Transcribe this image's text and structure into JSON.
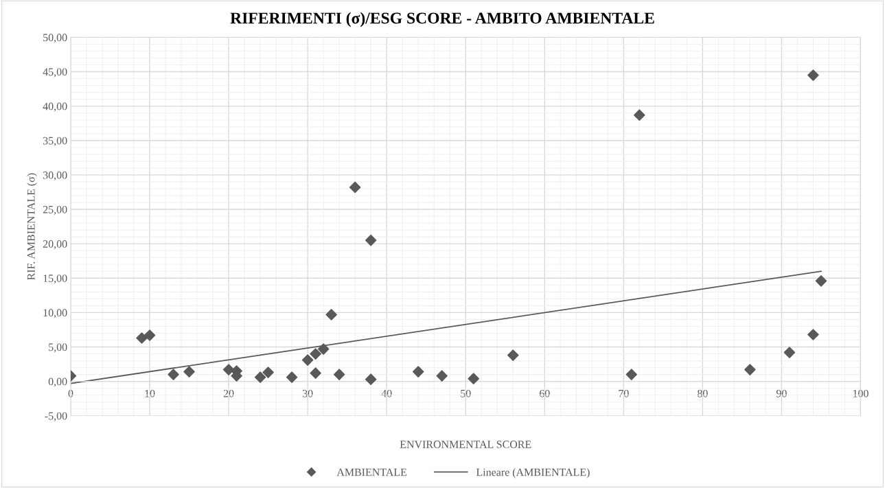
{
  "chart_data": {
    "type": "scatter",
    "title": "RIFERIMENTI (σ)/ESG SCORE - AMBITO AMBIENTALE",
    "xlabel": "ENVIRONMENTAL SCORE",
    "ylabel": "RIF. AMBIENTALE (σ)",
    "series": [
      {
        "name": "AMBIENTALE",
        "color": "#595959",
        "marker": "diamond",
        "x": [
          0,
          9,
          10,
          13,
          15,
          20,
          21,
          21,
          24,
          25,
          28,
          30,
          31,
          31,
          32,
          33,
          34,
          36,
          38,
          38,
          44,
          47,
          51,
          56,
          71,
          72,
          86,
          91,
          94,
          94,
          95
        ],
        "values": [
          0.8,
          6.3,
          6.7,
          1.0,
          1.4,
          1.7,
          1.5,
          0.8,
          0.6,
          1.3,
          0.6,
          3.1,
          4.0,
          1.2,
          4.7,
          9.7,
          1.0,
          28.2,
          20.5,
          0.3,
          1.4,
          0.8,
          0.4,
          3.8,
          1.0,
          38.7,
          1.7,
          4.2,
          44.5,
          6.8,
          14.6
        ]
      },
      {
        "name": "Lineare (AMBIENTALE)",
        "type": "line",
        "color": "#595959",
        "marker": "none",
        "line_style": "solid",
        "x": [
          0,
          95
        ],
        "values": [
          -0.3,
          16.0
        ]
      }
    ],
    "xlim": [
      0,
      100
    ],
    "xticks": [
      0,
      10,
      20,
      30,
      40,
      50,
      60,
      70,
      80,
      90,
      100
    ],
    "ylim": [
      -5,
      50
    ],
    "yticks": [
      {
        "value": -5,
        "label": "-5,00"
      },
      {
        "value": 0,
        "label": "0,00"
      },
      {
        "value": 5,
        "label": "5,00"
      },
      {
        "value": 10,
        "label": "10,00"
      },
      {
        "value": 15,
        "label": "15,00"
      },
      {
        "value": 20,
        "label": "20,00"
      },
      {
        "value": 25,
        "label": "25,00"
      },
      {
        "value": 30,
        "label": "30,00"
      },
      {
        "value": 35,
        "label": "35,00"
      },
      {
        "value": 40,
        "label": "40,00"
      },
      {
        "value": 45,
        "label": "45,00"
      },
      {
        "value": 50,
        "label": "50,00"
      }
    ],
    "grid": true,
    "legend": "bottom"
  }
}
